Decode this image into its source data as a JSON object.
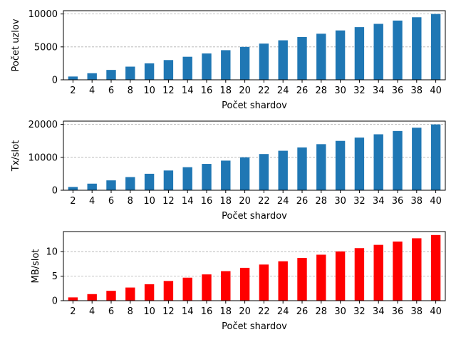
{
  "chart_data": [
    {
      "type": "bar",
      "categories": [
        "2",
        "4",
        "6",
        "8",
        "10",
        "12",
        "14",
        "16",
        "18",
        "20",
        "22",
        "24",
        "26",
        "28",
        "30",
        "32",
        "34",
        "36",
        "38",
        "40"
      ],
      "values": [
        500,
        1000,
        1500,
        2000,
        2500,
        3000,
        3500,
        4000,
        4500,
        5000,
        5500,
        6000,
        6500,
        7000,
        7500,
        8000,
        8500,
        9000,
        9500,
        10000
      ],
      "xlabel": "Počet shardov",
      "ylabel": "Počet uzlov",
      "ylim": [
        0,
        10500
      ],
      "yticks": [
        0,
        5000,
        10000
      ],
      "grid": "y-dashed",
      "color": "#1f77b4"
    },
    {
      "type": "bar",
      "categories": [
        "2",
        "4",
        "6",
        "8",
        "10",
        "12",
        "14",
        "16",
        "18",
        "20",
        "22",
        "24",
        "26",
        "28",
        "30",
        "32",
        "34",
        "36",
        "38",
        "40"
      ],
      "values": [
        1000,
        2000,
        3000,
        4000,
        5000,
        6000,
        7000,
        8000,
        9000,
        10000,
        11000,
        12000,
        13000,
        14000,
        15000,
        16000,
        17000,
        18000,
        19000,
        20000
      ],
      "xlabel": "Počet shardov",
      "ylabel": "Tx/slot",
      "ylim": [
        0,
        21000
      ],
      "yticks": [
        0,
        10000,
        20000
      ],
      "grid": "y-dashed",
      "color": "#1f77b4"
    },
    {
      "type": "bar",
      "categories": [
        "2",
        "4",
        "6",
        "8",
        "10",
        "12",
        "14",
        "16",
        "18",
        "20",
        "22",
        "24",
        "26",
        "28",
        "30",
        "32",
        "34",
        "36",
        "38",
        "40"
      ],
      "values": [
        0.67,
        1.34,
        2.01,
        2.68,
        3.35,
        4.02,
        4.69,
        5.36,
        6.03,
        6.7,
        7.37,
        8.04,
        8.71,
        9.38,
        10.05,
        10.72,
        11.39,
        12.06,
        12.73,
        13.4
      ],
      "xlabel": "Počet shardov",
      "ylabel": "MB/slot",
      "ylim": [
        0,
        14.1
      ],
      "yticks": [
        0,
        5,
        10
      ],
      "grid": "y-dashed",
      "color": "#ff0000"
    }
  ]
}
